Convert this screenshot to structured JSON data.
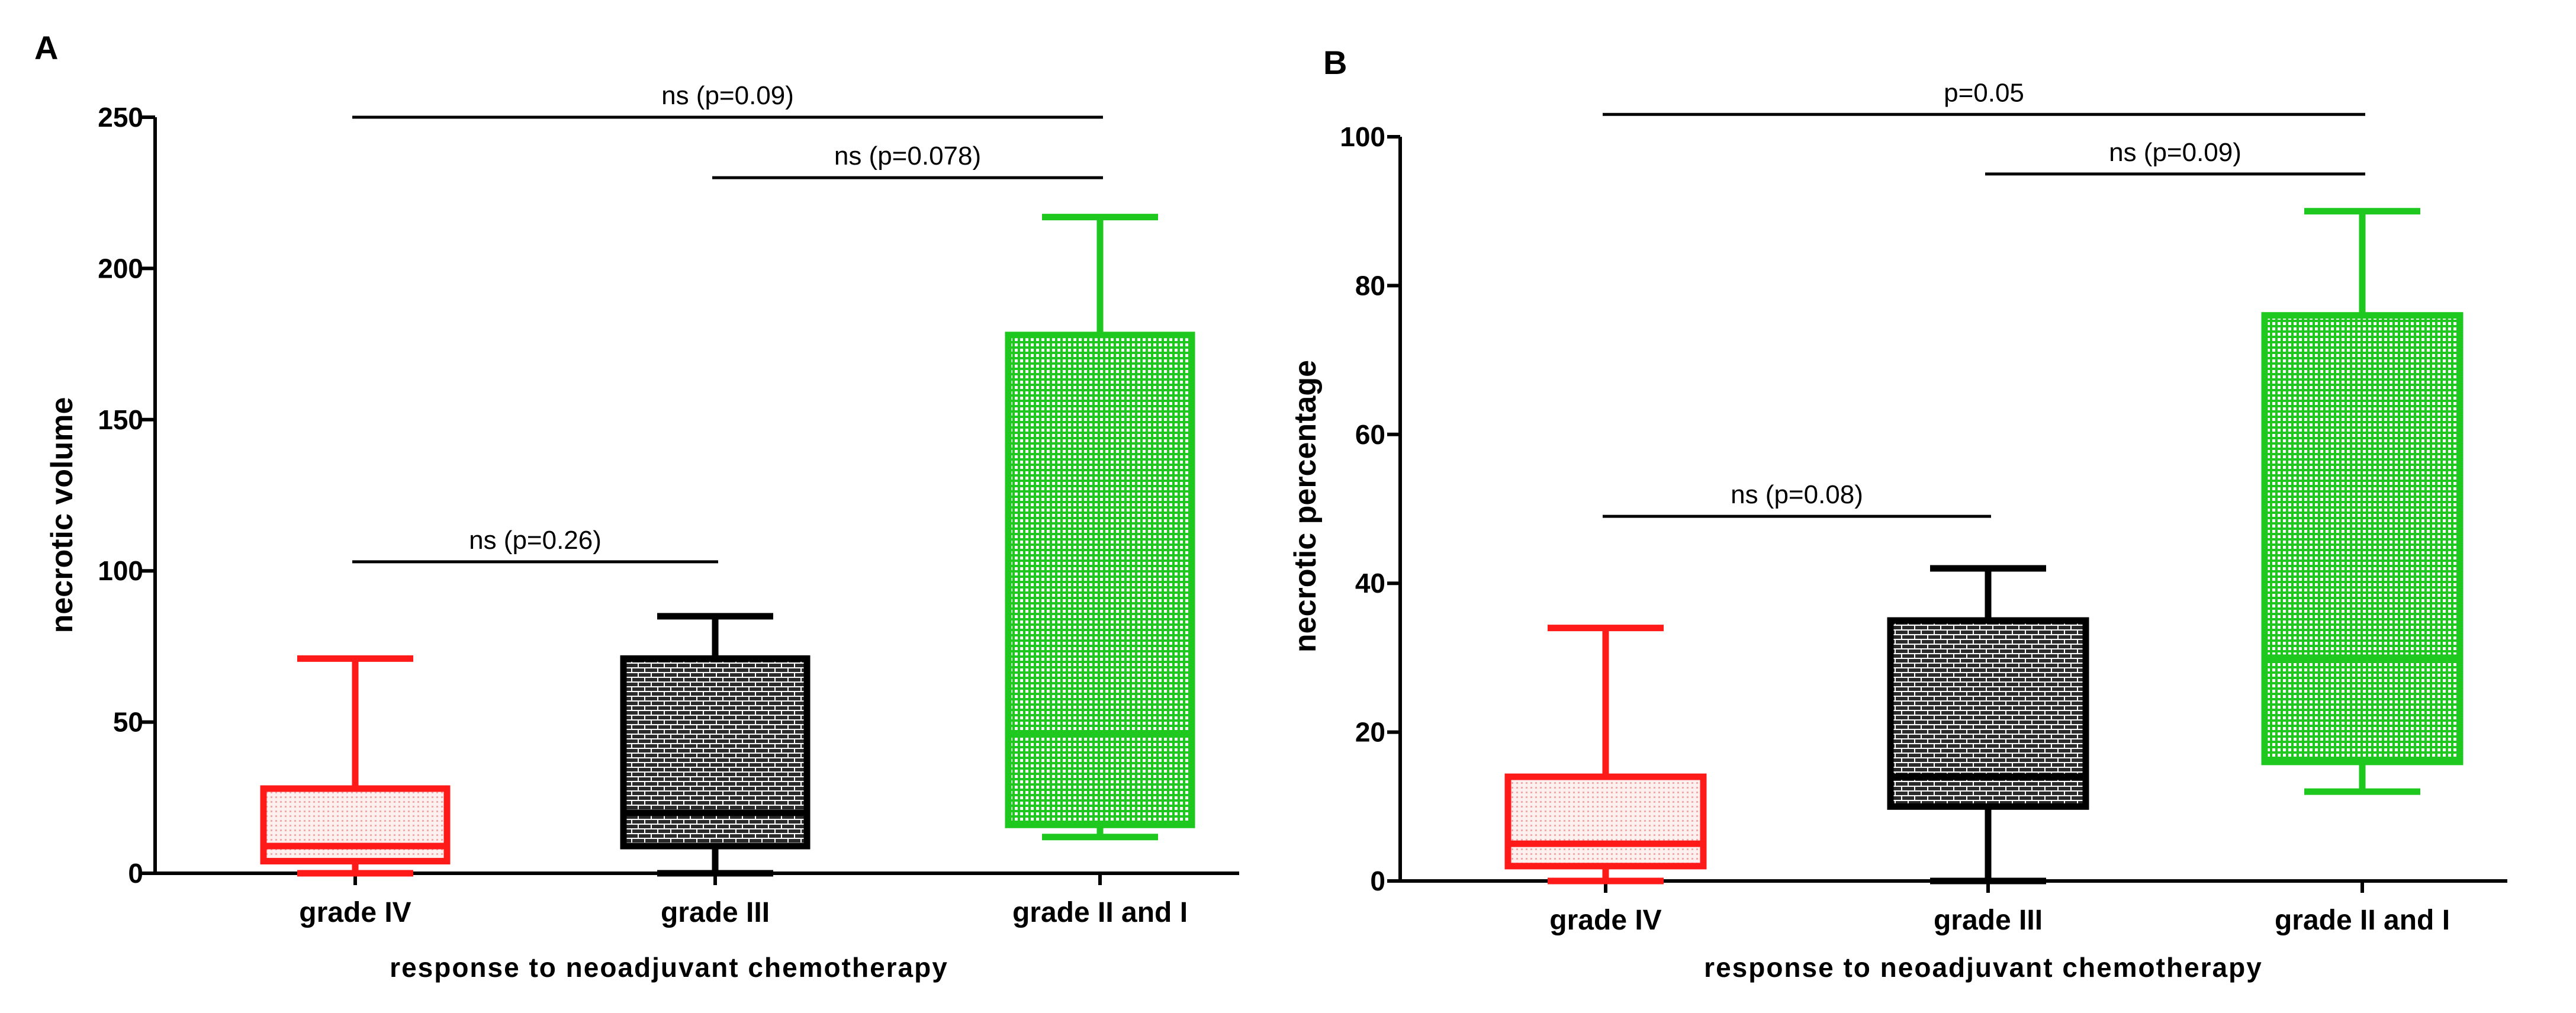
{
  "chart_data": [
    {
      "panel": "A",
      "type": "box",
      "title": "",
      "xlabel": "response to neoadjuvant chemotherapy",
      "ylabel": "necrotic volume",
      "ylim": [
        0,
        250
      ],
      "yticks": [
        0,
        50,
        100,
        150,
        200,
        250
      ],
      "categories": [
        "grade IV",
        "grade III",
        "grade II and I"
      ],
      "series": [
        {
          "name": "grade IV",
          "color": "#ff1a1a",
          "whisker_low": 0,
          "q1": 4,
          "median": 9,
          "q3": 28,
          "whisker_high": 71
        },
        {
          "name": "grade III",
          "color": "#000000",
          "whisker_low": 0,
          "q1": 9,
          "median": 20,
          "q3": 71,
          "whisker_high": 85
        },
        {
          "name": "grade II and I",
          "color": "#1ec81e",
          "whisker_low": 12,
          "q1": 16,
          "median": 46,
          "q3": 178,
          "whisker_high": 217
        }
      ],
      "comparisons": [
        {
          "from": 0,
          "to": 2,
          "y": 250,
          "label": "ns (p=0.09)"
        },
        {
          "from": 1,
          "to": 2,
          "y": 230,
          "label": "ns (p=0.078)"
        },
        {
          "from": 0,
          "to": 1,
          "y": 103,
          "label": "ns (p=0.26)"
        }
      ]
    },
    {
      "panel": "B",
      "type": "box",
      "title": "",
      "xlabel": "response to neoadjuvant chemotherapy",
      "ylabel": "necrotic percentage",
      "ylim": [
        0,
        100
      ],
      "yticks": [
        0,
        20,
        40,
        60,
        80,
        100
      ],
      "categories": [
        "grade IV",
        "grade III",
        "grade II and I"
      ],
      "series": [
        {
          "name": "grade IV",
          "color": "#ff1a1a",
          "whisker_low": 0,
          "q1": 2,
          "median": 5,
          "q3": 14,
          "whisker_high": 34
        },
        {
          "name": "grade III",
          "color": "#000000",
          "whisker_low": 0,
          "q1": 10,
          "median": 14,
          "q3": 35,
          "whisker_high": 42
        },
        {
          "name": "grade II and I",
          "color": "#1ec81e",
          "whisker_low": 12,
          "q1": 16,
          "median": 30,
          "q3": 76,
          "whisker_high": 90
        }
      ],
      "comparisons": [
        {
          "from": 0,
          "to": 2,
          "y": 103,
          "label": "p=0.05"
        },
        {
          "from": 1,
          "to": 2,
          "y": 95,
          "label": "ns (p=0.09)"
        },
        {
          "from": 0,
          "to": 1,
          "y": 49,
          "label": "ns (p=0.08)"
        }
      ]
    }
  ]
}
